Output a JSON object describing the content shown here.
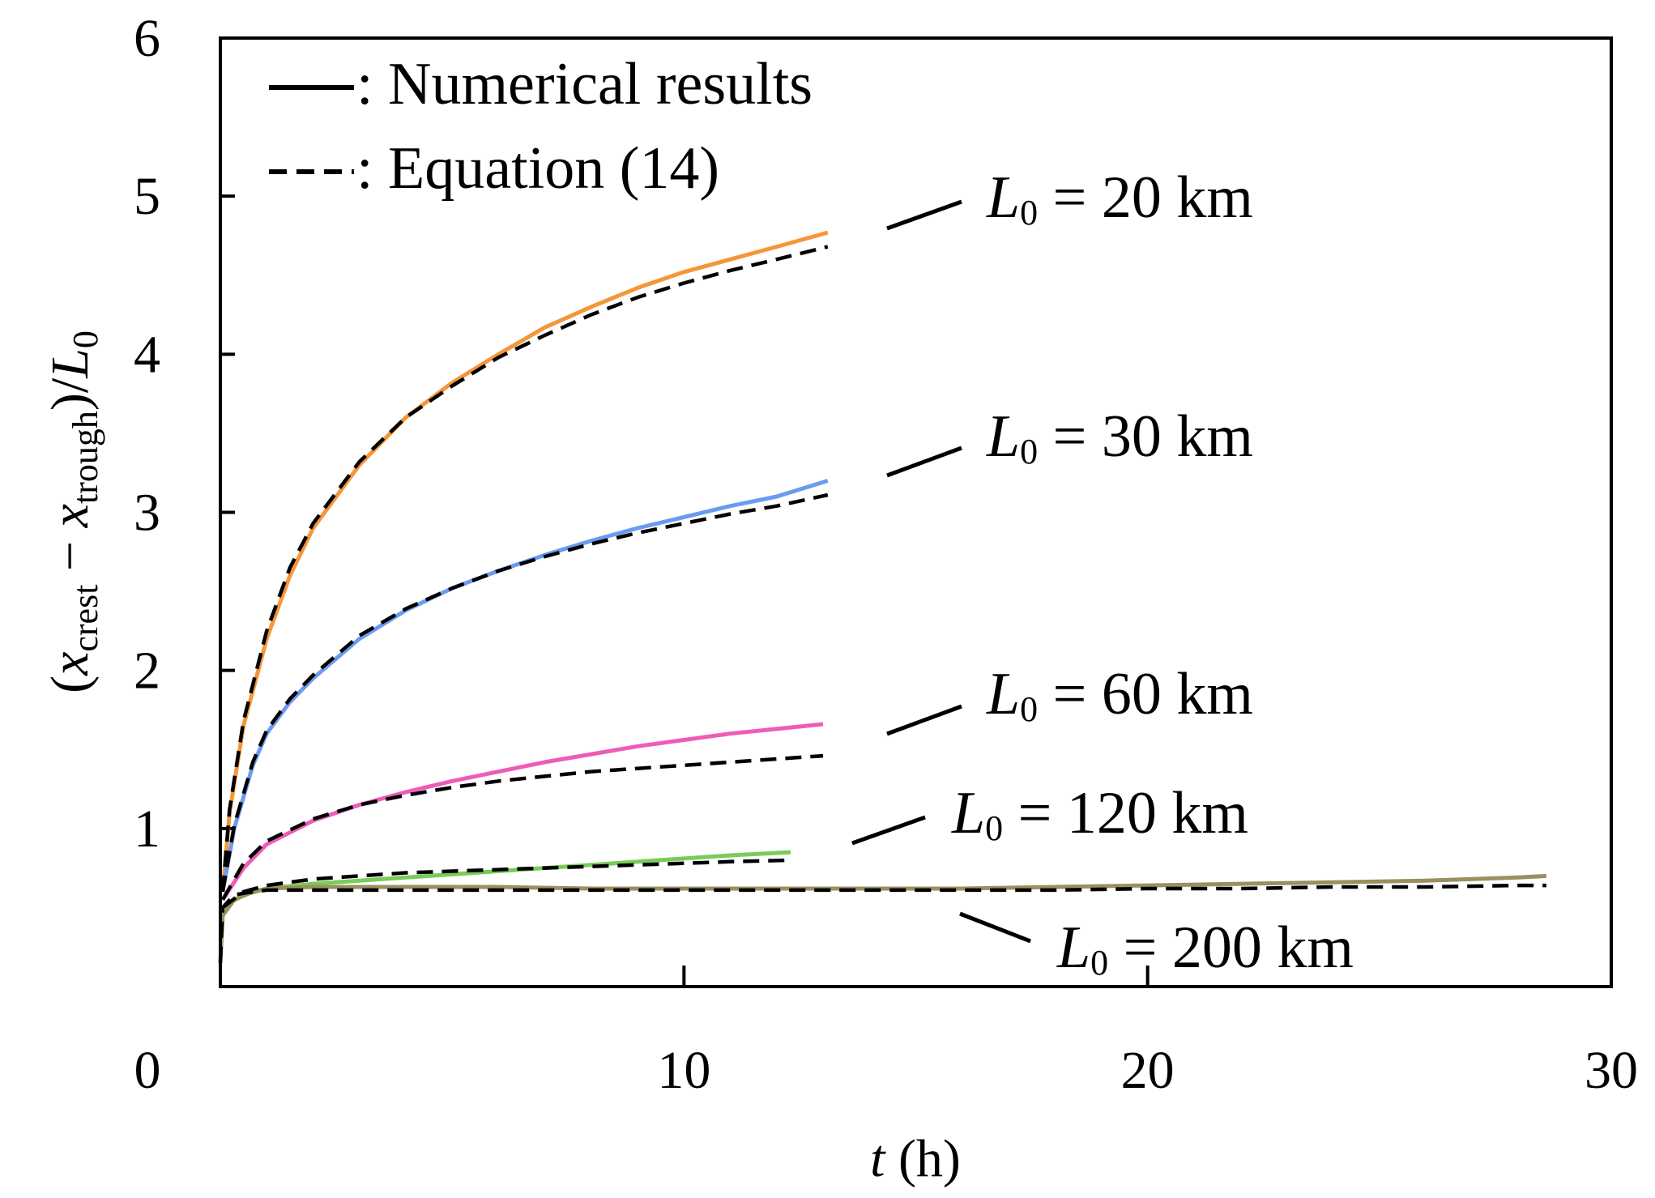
{
  "chart_data": {
    "type": "line",
    "title": "",
    "xlabel": {
      "var": "t",
      "unit": "(h)"
    },
    "ylabel": {
      "open": "(",
      "x1": "x",
      "sub1": "crest",
      "minus": "−",
      "x2": "x",
      "sub2": "trough",
      "close": ")",
      "slash": "/",
      "L": "L",
      "sub3": "0"
    },
    "xlim": [
      0,
      30
    ],
    "ylim": [
      0,
      6
    ],
    "x_ticks": [
      0,
      10,
      20,
      30
    ],
    "x_tick_labels": [
      "0",
      "10",
      "20",
      "30"
    ],
    "y_ticks": [
      0,
      1,
      2,
      3,
      4,
      5,
      6
    ],
    "y_tick_labels": [
      "",
      "1",
      "2",
      "3",
      "4",
      "5",
      "6"
    ],
    "grid": false,
    "legend": {
      "position": "top-left",
      "entries": [
        {
          "style": "solid",
          "text": ": Numerical results"
        },
        {
          "style": "dashed",
          "text": ": Equation (14)"
        }
      ]
    },
    "series": [
      {
        "name": "L0 = 20 km",
        "color": "#F5963A",
        "label": {
          "L": "L",
          "sub": "0",
          "rest": " = 20 km"
        },
        "numerical": {
          "x": [
            0.05,
            0.2,
            0.5,
            1,
            1.5,
            2,
            3,
            4,
            5,
            6,
            7,
            8,
            9,
            10,
            11,
            12,
            13.1
          ],
          "y": [
            0.6,
            1.1,
            1.65,
            2.2,
            2.6,
            2.9,
            3.3,
            3.6,
            3.82,
            4.0,
            4.17,
            4.3,
            4.42,
            4.52,
            4.6,
            4.68,
            4.77
          ]
        },
        "equation": {
          "x": [
            0.05,
            0.2,
            0.5,
            1,
            1.5,
            2,
            3,
            4,
            5,
            6,
            7,
            8,
            9,
            10,
            11,
            12,
            13.1
          ],
          "y": [
            0.6,
            1.12,
            1.68,
            2.25,
            2.65,
            2.93,
            3.32,
            3.6,
            3.8,
            3.98,
            4.12,
            4.25,
            4.36,
            4.45,
            4.53,
            4.6,
            4.68
          ]
        }
      },
      {
        "name": "L0 = 30 km",
        "color": "#6B9BF0",
        "label": {
          "L": "L",
          "sub": "0",
          "rest": " = 30 km"
        },
        "numerical": {
          "x": [
            0.05,
            0.3,
            0.7,
            1,
            1.5,
            2,
            3,
            4,
            5,
            6,
            7,
            8,
            9,
            10,
            11,
            12,
            13.1
          ],
          "y": [
            0.6,
            1.0,
            1.4,
            1.6,
            1.8,
            1.95,
            2.2,
            2.38,
            2.52,
            2.63,
            2.73,
            2.82,
            2.9,
            2.97,
            3.04,
            3.1,
            3.2
          ]
        },
        "equation": {
          "x": [
            0.05,
            0.3,
            0.7,
            1,
            1.5,
            2,
            3,
            4,
            5,
            6,
            7,
            8,
            9,
            10,
            11,
            12,
            13.1
          ],
          "y": [
            0.6,
            1.02,
            1.42,
            1.62,
            1.82,
            1.97,
            2.22,
            2.39,
            2.52,
            2.63,
            2.72,
            2.8,
            2.87,
            2.93,
            2.99,
            3.04,
            3.11
          ]
        }
      },
      {
        "name": "L0 = 60 km",
        "color": "#EE5CB8",
        "label": {
          "L": "L",
          "sub": "0",
          "rest": " = 60 km"
        },
        "numerical": {
          "x": [
            0.05,
            0.5,
            1,
            2,
            3,
            4,
            5,
            6,
            7,
            8,
            9,
            10,
            11,
            12,
            13
          ],
          "y": [
            0.55,
            0.75,
            0.9,
            1.05,
            1.15,
            1.23,
            1.3,
            1.36,
            1.42,
            1.47,
            1.52,
            1.56,
            1.6,
            1.63,
            1.66
          ]
        },
        "equation": {
          "x": [
            0.05,
            0.5,
            1,
            2,
            3,
            4,
            5,
            6,
            7,
            8,
            9,
            10,
            11,
            12,
            13
          ],
          "y": [
            0.55,
            0.78,
            0.92,
            1.06,
            1.15,
            1.21,
            1.26,
            1.3,
            1.33,
            1.36,
            1.38,
            1.4,
            1.42,
            1.44,
            1.46
          ]
        }
      },
      {
        "name": "L0 = 120 km",
        "color": "#7ACB58",
        "label": {
          "L": "L",
          "sub": "0",
          "rest": " = 120 km"
        },
        "numerical": {
          "x": [
            0.05,
            0.5,
            1,
            2,
            3,
            4,
            5,
            6,
            7,
            8,
            9,
            10,
            11,
            12.3
          ],
          "y": [
            0.5,
            0.58,
            0.62,
            0.65,
            0.67,
            0.69,
            0.71,
            0.73,
            0.75,
            0.77,
            0.79,
            0.81,
            0.83,
            0.85
          ]
        },
        "equation": {
          "x": [
            0.05,
            0.5,
            1,
            2,
            3,
            4,
            5,
            6,
            7,
            8,
            9,
            10,
            11,
            12.3
          ],
          "y": [
            0.5,
            0.6,
            0.64,
            0.68,
            0.7,
            0.72,
            0.73,
            0.74,
            0.75,
            0.76,
            0.77,
            0.78,
            0.79,
            0.8
          ]
        }
      },
      {
        "name": "L0 = 200 km",
        "color": "#9A9060",
        "label": {
          "L": "L",
          "sub": "0",
          "rest": " = 200 km"
        },
        "numerical": {
          "x": [
            0,
            0.05,
            0.3,
            0.7,
            1,
            2,
            4,
            6,
            8,
            10,
            12,
            14,
            16,
            18,
            20,
            22,
            24,
            26,
            28,
            28.6
          ],
          "y": [
            0.15,
            0.45,
            0.55,
            0.6,
            0.62,
            0.63,
            0.63,
            0.63,
            0.62,
            0.62,
            0.62,
            0.62,
            0.62,
            0.63,
            0.64,
            0.65,
            0.66,
            0.67,
            0.69,
            0.7
          ]
        },
        "equation": {
          "x": [
            0,
            0.05,
            0.3,
            0.7,
            1,
            2,
            4,
            6,
            8,
            10,
            12,
            14,
            16,
            18,
            20,
            22,
            24,
            26,
            28,
            28.6
          ],
          "y": [
            0.15,
            0.5,
            0.58,
            0.6,
            0.61,
            0.61,
            0.61,
            0.61,
            0.61,
            0.61,
            0.61,
            0.61,
            0.61,
            0.61,
            0.62,
            0.62,
            0.63,
            0.63,
            0.64,
            0.64
          ]
        }
      }
    ]
  }
}
